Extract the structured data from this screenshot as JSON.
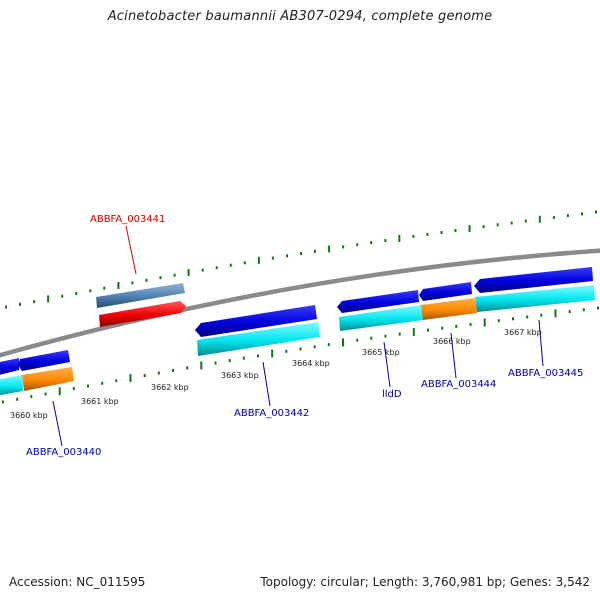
{
  "title": "Acinetobacter baumannii AB307-0294, complete genome",
  "footer": {
    "accession": "Accession: NC_011595",
    "summary": "Topology: circular; Length: 3,760,981 bp; Genes: 3,542"
  },
  "ticks": [
    "3660 kbp",
    "3661 kbp",
    "3662 kbp",
    "3663 kbp",
    "3664 kbp",
    "3665 kbp",
    "3666 kbp",
    "3667 kbp"
  ],
  "gene_labels": [
    {
      "name": "ABBFA_003441",
      "color": "#cc0000"
    },
    {
      "name": "ABBFA_003440",
      "color": "#00009e"
    },
    {
      "name": "ABBFA_003442",
      "color": "#00009e"
    },
    {
      "name": "lldD",
      "color": "#00009e"
    },
    {
      "name": "ABBFA_003444",
      "color": "#00009e"
    },
    {
      "name": "ABBFA_003445",
      "color": "#00009e"
    }
  ],
  "colors": {
    "backbone": "#888888",
    "gene_blue": "#0000dd",
    "gene_cyan": "#00e5ee",
    "gene_orange": "#ff8800",
    "gene_red": "#ee0000",
    "gene_steel": "#4f81b0",
    "tick_green": "#117711"
  }
}
